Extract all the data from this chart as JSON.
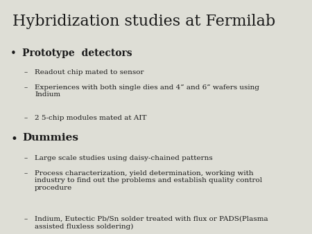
{
  "title": "Hybridization studies at Fermilab",
  "background_color": "#deded6",
  "text_color": "#1a1a1a",
  "bullet1": "Prototype  detectors",
  "bullet1_subs": [
    "Readout chip mated to sensor",
    "Experiences with both single dies and 4” and 6” wafers using\nIndium",
    "2 5-chip modules mated at AIT"
  ],
  "bullet2": "Dummies",
  "bullet2_subs": [
    "Large scale studies using daisy-chained patterns",
    "Process characterization, yield determination, working with\nindustry to find out the problems and establish quality control\nprocedure",
    "Indium, Eutectic Pb/Sn solder treated with flux or PADS(Plasma\nassisted fluxless soldering)"
  ],
  "title_fontsize": 16,
  "bullet_fontsize": 10,
  "sub_fontsize": 7.5
}
